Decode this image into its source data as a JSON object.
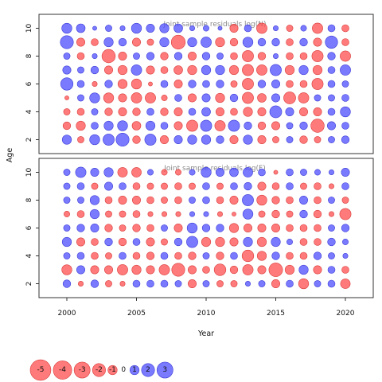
{
  "colors": {
    "negative": "#ff4d4d",
    "positive": "#4d4dff",
    "negative_stroke": "#d93b3b",
    "positive_stroke": "#3a3ad6"
  },
  "chart_data": {
    "type": "bubble",
    "xlabel": "Year",
    "ylabel": "Age",
    "xlim": [
      1998,
      2022
    ],
    "ylim": [
      1,
      11
    ],
    "x_ticks": [
      2000,
      2005,
      2010,
      2015,
      2020
    ],
    "y_ticks": [
      2,
      4,
      6,
      8,
      10
    ],
    "years": [
      2000,
      2001,
      2002,
      2003,
      2004,
      2005,
      2006,
      2007,
      2008,
      2009,
      2010,
      2011,
      2012,
      2013,
      2014,
      2015,
      2016,
      2017,
      2018,
      2019,
      2020
    ],
    "ages": [
      2,
      3,
      4,
      5,
      6,
      7,
      8,
      9,
      10
    ],
    "panels": [
      {
        "title": "Joint sample residuals log(N)",
        "residuals": [
          [
            1.0,
            -0.5,
            1.2,
            1.5,
            2.0,
            -0.7,
            1.5,
            -0.8,
            0.8,
            1.0,
            1.0,
            0.7,
            -0.8,
            1.0,
            -0.8,
            -0.5,
            0.5,
            -0.7,
            -0.5,
            0.5,
            0.7
          ],
          [
            -0.7,
            -1.0,
            0.6,
            1.0,
            1.2,
            -0.9,
            1.0,
            0.6,
            -0.8,
            -1.5,
            1.5,
            -1.3,
            1.5,
            0.7,
            -0.7,
            -0.8,
            0.5,
            0.7,
            -2.1,
            0.8,
            0.6
          ],
          [
            -0.5,
            -0.6,
            0.5,
            -0.7,
            -0.8,
            -0.7,
            0.6,
            -0.7,
            -0.8,
            0.6,
            0.9,
            -0.8,
            -0.6,
            -1.0,
            -0.8,
            1.7,
            0.8,
            -0.8,
            -0.8,
            0.6,
            1.2
          ],
          [
            -0.2,
            0.5,
            1.2,
            -1.2,
            -0.8,
            -1.3,
            -1.3,
            -0.4,
            0.6,
            -0.8,
            0.8,
            -1.0,
            0.7,
            -1.5,
            -0.9,
            0.8,
            -1.7,
            -1.3,
            0.5,
            0.5,
            0.6
          ],
          [
            1.8,
            0.6,
            -0.3,
            0.7,
            -1.0,
            -1.2,
            -0.2,
            0.6,
            -0.8,
            0.7,
            0.6,
            0.7,
            -0.5,
            -1.5,
            0.7,
            0.8,
            -0.6,
            -0.6,
            -1.5,
            0.6,
            0.5
          ],
          [
            0.8,
            0.5,
            0.7,
            -0.8,
            -1.0,
            1.3,
            -0.8,
            -0.6,
            -0.9,
            -1.0,
            1.0,
            1.0,
            -1.0,
            -1.5,
            -1.3,
            1.5,
            -1.0,
            1.0,
            -1.0,
            0.6,
            1.3
          ],
          [
            0.5,
            -0.6,
            0.3,
            -2.1,
            -0.8,
            0.5,
            0.7,
            -0.7,
            0.7,
            -0.8,
            0.7,
            0.5,
            -0.6,
            -1.5,
            -0.7,
            0.3,
            -0.6,
            -0.6,
            -1.5,
            0.7,
            -1.3
          ],
          [
            2.0,
            -0.8,
            -0.6,
            1.0,
            0.7,
            -0.8,
            -0.5,
            1.0,
            -2.3,
            1.0,
            1.3,
            -1.0,
            -0.7,
            1.2,
            0.7,
            0.7,
            -0.6,
            0.7,
            -0.8,
            1.8,
            -0.6
          ],
          [
            1.2,
            0.9,
            0.2,
            0.5,
            0.3,
            1.2,
            0.8,
            1.0,
            0.9,
            0.3,
            0.4,
            0.2,
            -0.8,
            0.6,
            -1.3,
            0.3,
            -0.5,
            0.4,
            -1.3,
            0.6,
            -0.6
          ]
        ]
      },
      {
        "title": "Joint sample residuals log(F)",
        "residuals": [
          [
            0.7,
            -0.3,
            0.7,
            -0.5,
            -0.3,
            0.6,
            0.6,
            0.6,
            0.5,
            -0.8,
            0.5,
            -0.5,
            -0.5,
            0.3,
            0.5,
            -0.8,
            0.6,
            -1.2,
            0.5,
            0.6,
            -1.1
          ],
          [
            -1.2,
            0.8,
            -0.8,
            -0.8,
            -1.3,
            -1.0,
            -0.8,
            -1.3,
            -2.0,
            -0.8,
            -0.6,
            -1.6,
            -0.7,
            -1.3,
            -0.8,
            -2.2,
            -1.0,
            1.0,
            -0.8,
            0.6,
            -0.6
          ],
          [
            0.5,
            0.6,
            -0.6,
            -0.5,
            0.6,
            -0.6,
            -0.7,
            0.6,
            -0.6,
            -0.7,
            0.5,
            -0.7,
            0.6,
            -1.6,
            -1.0,
            0.7,
            -0.6,
            -0.6,
            0.7,
            0.5,
            0.3
          ],
          [
            1.0,
            -0.8,
            -0.6,
            0.7,
            -0.7,
            0.6,
            -0.8,
            -0.5,
            0.7,
            1.5,
            -1.0,
            -1.0,
            -0.8,
            1.0,
            -1.0,
            1.0,
            0.4,
            -0.6,
            -0.6,
            0.7,
            0.4
          ],
          [
            0.5,
            0.7,
            0.8,
            -0.7,
            -0.5,
            -0.7,
            -0.6,
            0.5,
            -0.8,
            1.2,
            0.7,
            0.7,
            -1.0,
            -0.8,
            -0.8,
            -0.8,
            -0.6,
            -0.6,
            -0.6,
            0.5,
            0.7
          ],
          [
            -0.4,
            -0.6,
            1.0,
            -0.5,
            -0.5,
            -0.6,
            -0.3,
            -0.3,
            -0.3,
            0.3,
            0.3,
            -0.3,
            -0.2,
            1.2,
            -0.5,
            -0.7,
            -0.5,
            0.7,
            -0.7,
            -0.3,
            -1.5
          ],
          [
            0.5,
            0.5,
            1.0,
            -0.6,
            -0.8,
            -0.8,
            -0.6,
            -0.5,
            -0.6,
            0.5,
            0.6,
            -0.6,
            -0.8,
            1.5,
            -1.2,
            -0.7,
            -0.6,
            0.8,
            -0.6,
            0.5,
            -0.5
          ],
          [
            0.5,
            0.6,
            -0.5,
            0.8,
            0.6,
            -0.6,
            -0.5,
            -0.5,
            -0.6,
            -0.5,
            0.6,
            -0.5,
            0.6,
            0.7,
            -0.8,
            -0.6,
            0.6,
            -0.5,
            -0.6,
            -0.3,
            0.6
          ],
          [
            0.5,
            1.3,
            0.8,
            1.0,
            -1.1,
            -1.1,
            0.4,
            -0.4,
            -0.4,
            0.4,
            1.2,
            0.8,
            0.9,
            1.1,
            0.6,
            -0.2,
            0.6,
            0.5,
            0.4,
            0.3,
            0.8
          ]
        ]
      }
    ],
    "legend": {
      "values": [
        -5,
        -4,
        -3,
        -2,
        -1,
        0,
        1,
        2,
        3
      ],
      "labels": [
        "-5",
        "-4",
        "-3",
        "-2",
        "-1",
        "0",
        "1",
        "2",
        "3"
      ]
    }
  }
}
